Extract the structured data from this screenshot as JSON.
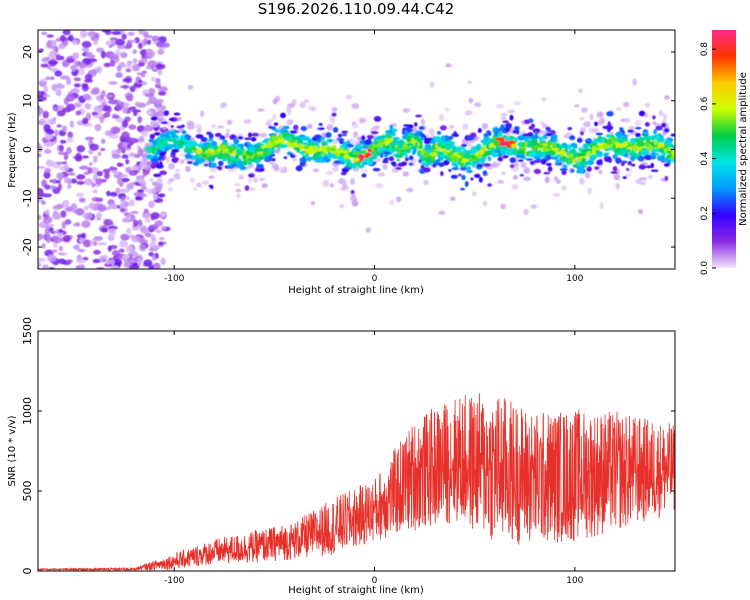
{
  "title": "S196.2026.110.09.44.C42",
  "chart_data": [
    {
      "type": "heatmap",
      "name": "spectrogram",
      "xlabel": "Height of straight line (km)",
      "ylabel": "Frequency (Hz)",
      "xlim": [
        -168,
        150
      ],
      "ylim": [
        -24.5,
        24.5
      ],
      "xticks": [
        -100,
        0,
        100
      ],
      "xtick_labels": [
        "-100",
        "0",
        "100"
      ],
      "yticks": [
        -20,
        -10,
        0,
        10,
        20
      ],
      "ytick_labels": [
        "-20",
        "-10",
        "0",
        "10",
        "20"
      ],
      "colorbar": {
        "label": "Normalized spectral amplitude",
        "range": [
          0,
          0.87
        ],
        "ticks": [
          0,
          0.2,
          0.4,
          0.6,
          0.8
        ],
        "tick_labels": [
          "0.0",
          "0.2",
          "0.4",
          "0.6",
          "0.8"
        ],
        "colors": [
          "#f2e6ff",
          "#8a2be2",
          "#3300ff",
          "#0099ff",
          "#00e5e5",
          "#00cc44",
          "#ccff00",
          "#ffcc00",
          "#ff3300",
          "#ff2a88"
        ]
      },
      "features": {
        "noise_region_x": [
          -168,
          -112
        ],
        "signal_band_center_hz": 0,
        "signal_band_halfwidth_hz": 4,
        "peak_x": [
          -5,
          65
        ]
      }
    },
    {
      "type": "line",
      "name": "snr",
      "xlabel": "Height of straight line (km)",
      "ylabel": "SNR (10 * v/v)",
      "xlim": [
        -168,
        150
      ],
      "ylim": [
        0,
        1500
      ],
      "xticks": [
        -100,
        0,
        100
      ],
      "xtick_labels": [
        "-100",
        "0",
        "100"
      ],
      "yticks": [
        0,
        500,
        1000,
        1500
      ],
      "ytick_labels": [
        "0",
        "500",
        "1000",
        "1500"
      ],
      "color": "#e8302a",
      "envelope": {
        "x": [
          -168,
          -120,
          -100,
          -80,
          -60,
          -40,
          -20,
          0,
          20,
          40,
          60,
          80,
          100,
          120,
          150
        ],
        "mean": [
          10,
          12,
          60,
          120,
          150,
          190,
          280,
          380,
          600,
          700,
          650,
          580,
          600,
          620,
          640
        ],
        "spread": [
          5,
          8,
          50,
          80,
          100,
          120,
          180,
          200,
          350,
          400,
          480,
          420,
          420,
          380,
          280
        ]
      }
    }
  ]
}
